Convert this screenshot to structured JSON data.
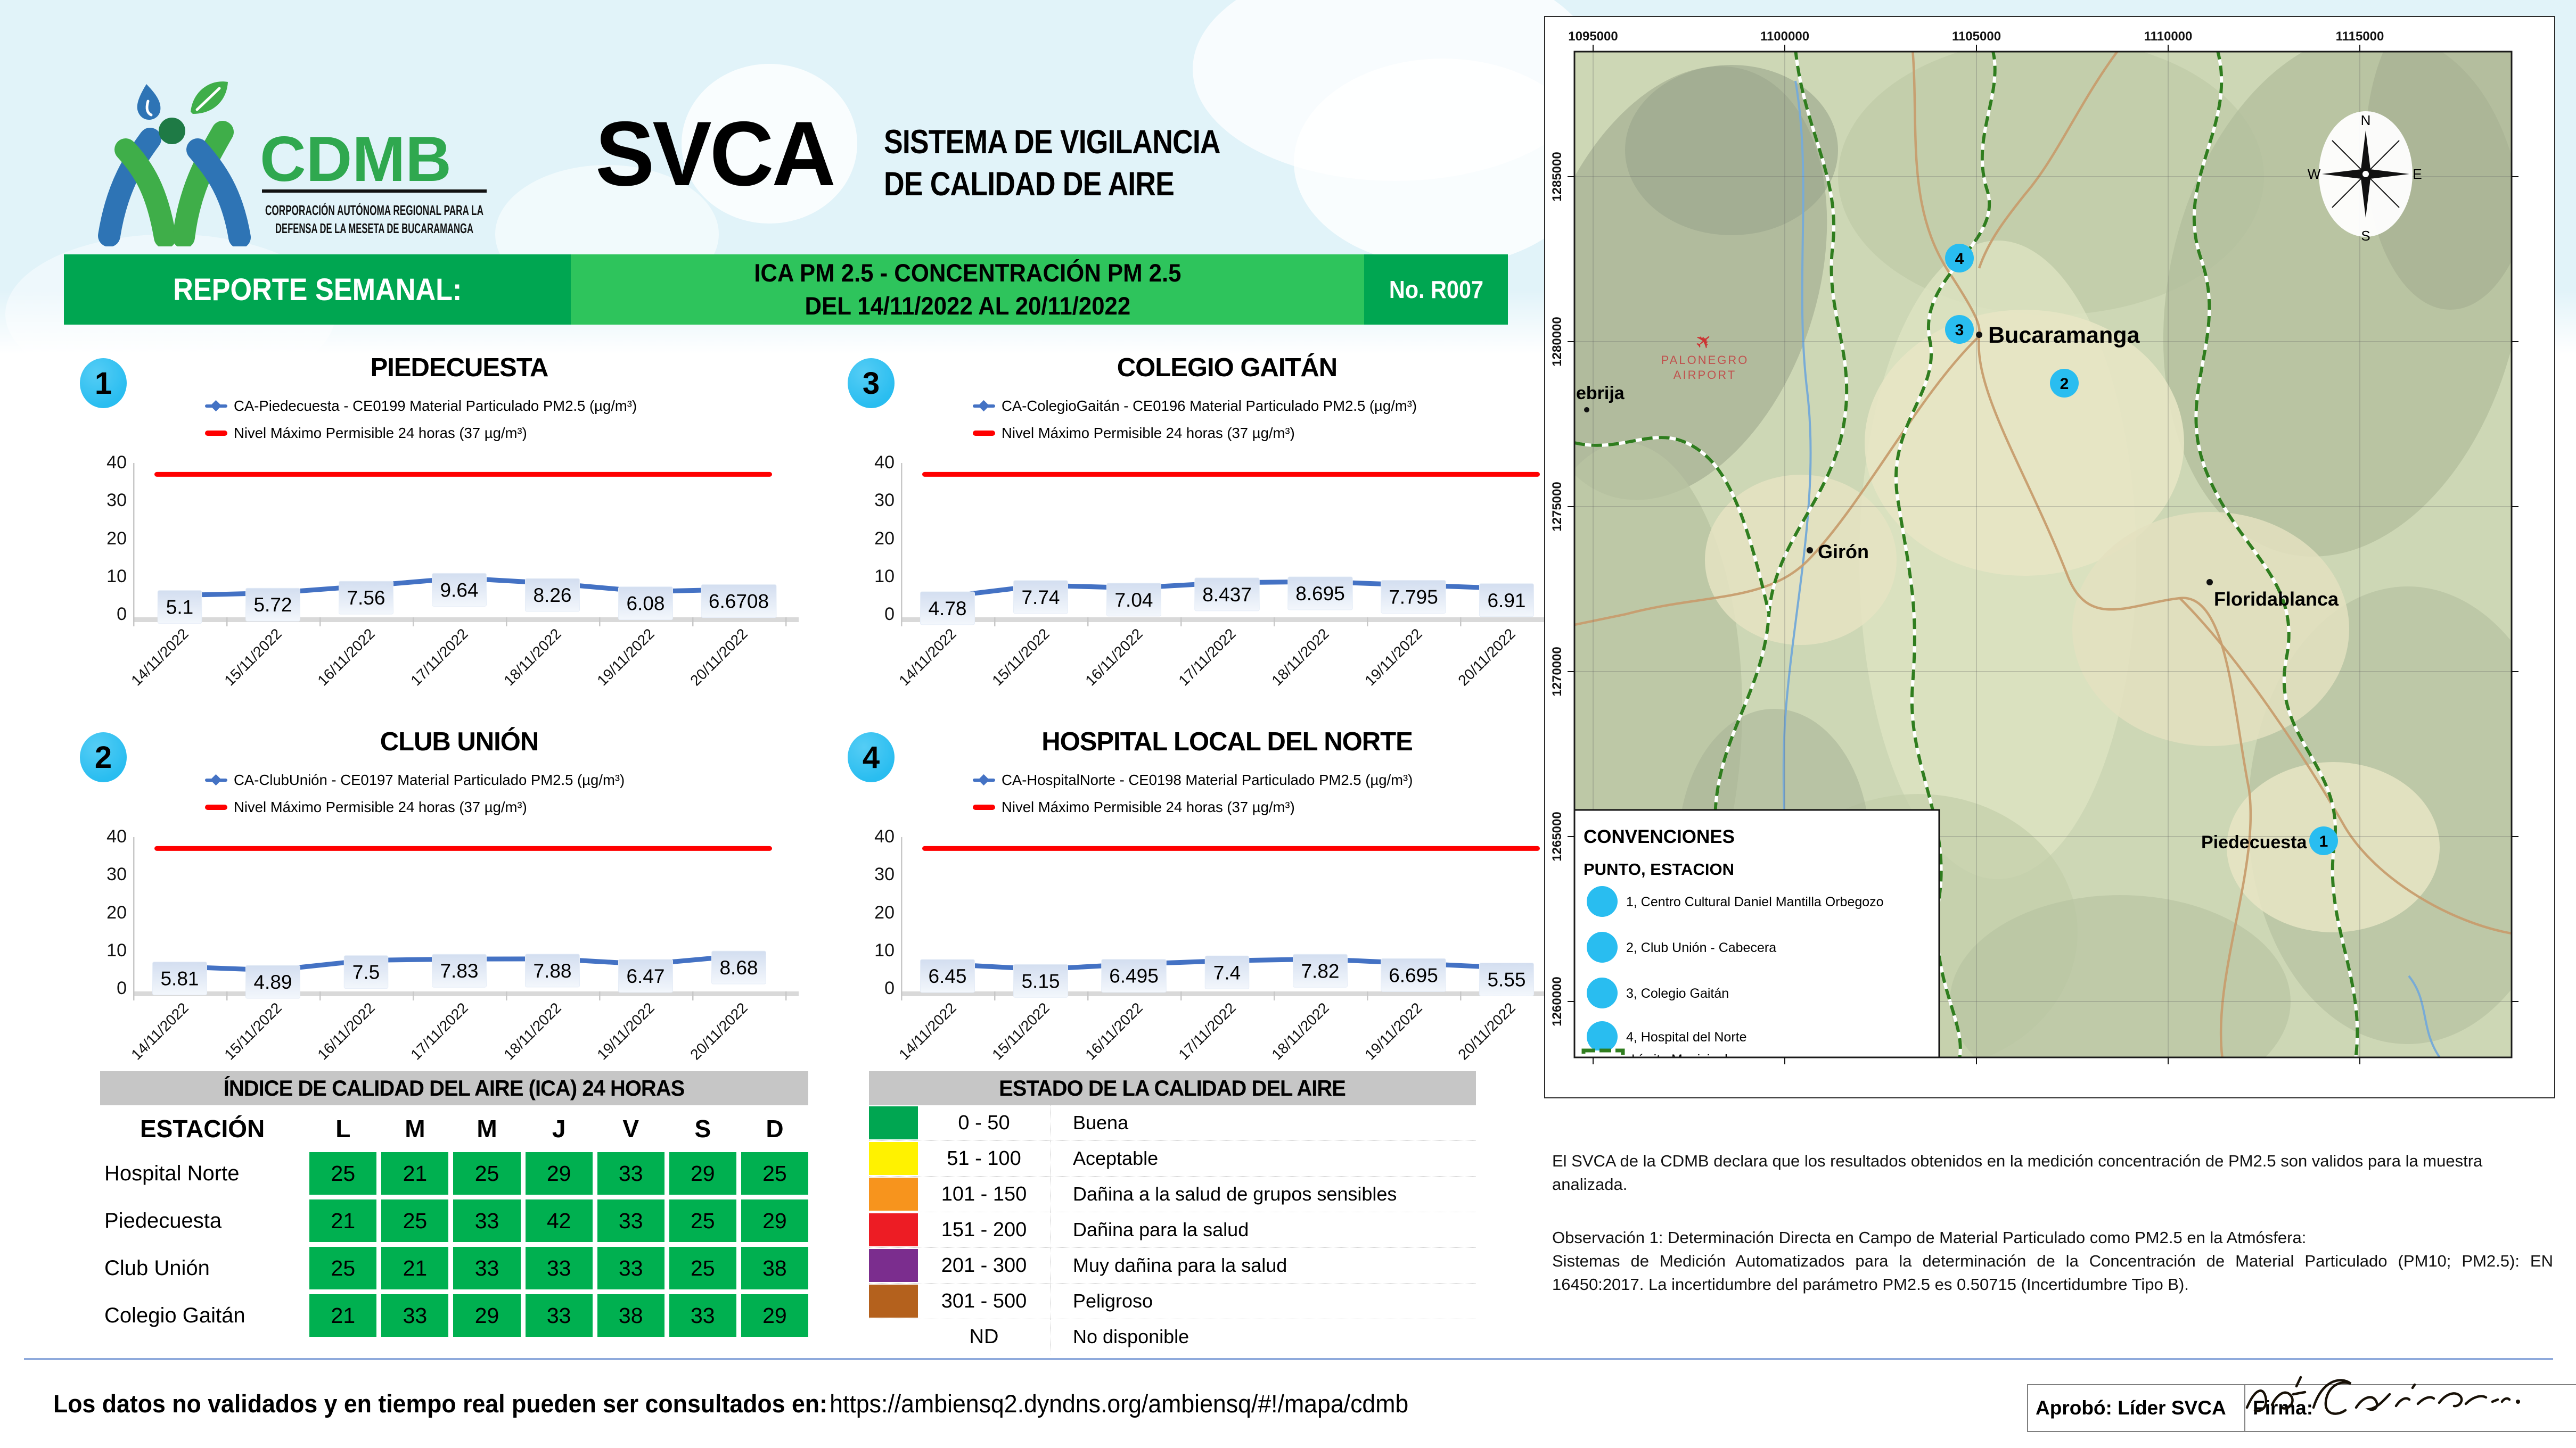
{
  "colors": {
    "green_dark": "#00A651",
    "green_light": "#2EC45C",
    "badge_cyan": "#29BDF0",
    "series_blue": "#4472C4",
    "max_red": "#FF0000",
    "cell_green": "#00B050",
    "header_gray": "#C6C6C6",
    "divider_blue": "#8FAADC",
    "logo_green": "#2FA84F",
    "logo_blue": "#2E74B5"
  },
  "header": {
    "brand": "CDMB",
    "tagline1": "CORPORACIÓN AUTÓNOMA REGIONAL PARA LA",
    "tagline2": "DEFENSA DE LA MESETA DE BUCARAMANGA",
    "title": "SVCA",
    "subtitle1": "SISTEMA DE VIGILANCIA",
    "subtitle2": "DE CALIDAD DE AIRE"
  },
  "banner": {
    "left": "REPORTE SEMANAL:",
    "center1": "ICA PM 2.5 - CONCENTRACIÓN PM 2.5",
    "center2": "DEL 14/11/2022 AL 20/11/2022",
    "right": "No. R007"
  },
  "chart_common": {
    "y_ticks": [
      40,
      30,
      20,
      10,
      0
    ],
    "ylim": [
      0,
      40
    ],
    "max_level": 37,
    "grid": false,
    "legend_position": "top"
  },
  "chart_data": [
    {
      "type": "line",
      "badge": "1",
      "title": "PIEDECUESTA",
      "x": [
        "14/11/2022",
        "15/11/2022",
        "16/11/2022",
        "17/11/2022",
        "18/11/2022",
        "19/11/2022",
        "20/11/2022"
      ],
      "series": [
        {
          "name": "CA-Piedecuesta - CE0199 Material Particulado PM2.5 (µg/m³)",
          "values": [
            5.1,
            5.72,
            7.56,
            9.64,
            8.26,
            6.08,
            6.6708
          ]
        },
        {
          "name": "Nivel Máximo Permisible 24 horas (37 µg/m³)",
          "values": [
            37,
            37,
            37,
            37,
            37,
            37,
            37
          ]
        }
      ],
      "ylim": [
        0,
        40
      ]
    },
    {
      "type": "line",
      "badge": "3",
      "title": "COLEGIO GAITÁN",
      "x": [
        "14/11/2022",
        "15/11/2022",
        "16/11/2022",
        "17/11/2022",
        "18/11/2022",
        "19/11/2022",
        "20/11/2022"
      ],
      "series": [
        {
          "name": "CA-ColegioGaitán - CE0196 Material Particulado PM2.5 (µg/m³)",
          "values": [
            4.78,
            7.74,
            7.04,
            8.437,
            8.695,
            7.795,
            6.91
          ]
        },
        {
          "name": "Nivel Máximo Permisible 24 horas (37 µg/m³)",
          "values": [
            37,
            37,
            37,
            37,
            37,
            37,
            37
          ]
        }
      ],
      "ylim": [
        0,
        40
      ]
    },
    {
      "type": "line",
      "badge": "2",
      "title": "CLUB UNIÓN",
      "x": [
        "14/11/2022",
        "15/11/2022",
        "16/11/2022",
        "17/11/2022",
        "18/11/2022",
        "19/11/2022",
        "20/11/2022"
      ],
      "series": [
        {
          "name": "CA-ClubUnión - CE0197 Material Particulado PM2.5 (µg/m³)",
          "values": [
            5.81,
            4.89,
            7.5,
            7.83,
            7.88,
            6.47,
            8.68
          ]
        },
        {
          "name": "Nivel Máximo Permisible 24 horas (37 µg/m³)",
          "values": [
            37,
            37,
            37,
            37,
            37,
            37,
            37
          ]
        }
      ],
      "ylim": [
        0,
        40
      ]
    },
    {
      "type": "line",
      "badge": "4",
      "title": "HOSPITAL LOCAL DEL NORTE",
      "x": [
        "14/11/2022",
        "15/11/2022",
        "16/11/2022",
        "17/11/2022",
        "18/11/2022",
        "19/11/2022",
        "20/11/2022"
      ],
      "series": [
        {
          "name": "CA-HospitalNorte - CE0198 Material Particulado PM2.5 (µg/m³)",
          "values": [
            6.45,
            5.15,
            6.495,
            7.4,
            7.82,
            6.695,
            5.55
          ]
        },
        {
          "name": "Nivel Máximo Permisible 24 horas (37 µg/m³)",
          "values": [
            37,
            37,
            37,
            37,
            37,
            37,
            37
          ]
        }
      ],
      "ylim": [
        0,
        40
      ]
    }
  ],
  "ica_table": {
    "title": "ÍNDICE DE CALIDAD DEL AIRE (ICA) 24 HORAS",
    "columns": [
      "ESTACIÓN",
      "L",
      "M",
      "M",
      "J",
      "V",
      "S",
      "D"
    ],
    "rows": [
      {
        "station": "Hospital Norte",
        "values": [
          25,
          21,
          25,
          29,
          33,
          29,
          25
        ]
      },
      {
        "station": "Piedecuesta",
        "values": [
          21,
          25,
          33,
          42,
          33,
          25,
          29
        ]
      },
      {
        "station": "Club Unión",
        "values": [
          25,
          21,
          33,
          33,
          33,
          25,
          38
        ]
      },
      {
        "station": "Colegio Gaitán",
        "values": [
          21,
          33,
          29,
          33,
          38,
          33,
          29
        ]
      }
    ]
  },
  "estado_table": {
    "title": "ESTADO DE LA CALIDAD DEL AIRE",
    "rows": [
      {
        "range": "0 - 50",
        "label": "Buena",
        "color": "#00A651"
      },
      {
        "range": "51 - 100",
        "label": "Aceptable",
        "color": "#FFF200"
      },
      {
        "range": "101 - 150",
        "label": "Dañina a la salud de grupos sensibles",
        "color": "#F7941D"
      },
      {
        "range": "151 - 200",
        "label": "Dañina para la salud",
        "color": "#ED1C24"
      },
      {
        "range": "201 - 300",
        "label": "Muy dañina para la salud",
        "color": "#7B2D8E"
      },
      {
        "range": "301 - 500",
        "label": "Peligroso",
        "color": "#B4611D"
      },
      {
        "range": "ND",
        "label": "No disponible",
        "color": null
      }
    ]
  },
  "map": {
    "x_labels": [
      "1095000",
      "1100000",
      "1105000",
      "1110000",
      "1115000"
    ],
    "y_labels": [
      "1285000",
      "1280000",
      "1275000",
      "1270000",
      "1265000",
      "1260000"
    ],
    "cities": {
      "bucaramanga": "Bucaramanga",
      "giron": "Girón",
      "floridablanca": "Floridablanca",
      "piedecuesta": "Piedecuesta",
      "lebrija": "ebrija"
    },
    "airport1": "PALONEGRO",
    "airport2": "AIRPORT",
    "marker_labels": [
      "1",
      "2",
      "3",
      "4"
    ],
    "compass": {
      "n": "N",
      "e": "E",
      "s": "S",
      "w": "W"
    },
    "legend": {
      "title": "CONVENCIONES",
      "subtitle": "PUNTO, ESTACION",
      "items": [
        "1, Centro Cultural Daniel Mantilla Orbegozo",
        "2, Club Unión - Cabecera",
        "3, Colegio Gaitán",
        "4, Hospital del Norte"
      ],
      "limit_label": "Límite Municipal"
    }
  },
  "observations": {
    "p1": "El SVCA  de la CDMB declara que los resultados obtenidos en la medición concentración de PM2.5 son validos para la muestra  analizada.",
    "p2a": "Observación 1: Determinación Directa en Campo de Material Particulado como PM2.5 en la Atmósfera:",
    "p2b": "Sistemas de Medición Automatizados para la  determinación de la Concentración de Material Particulado (PM10; PM2.5): EN 16450:2017. La incertidumbre del parámetro PM2.5 es 0.50715 (Incertidumbre Tipo B)."
  },
  "footer": {
    "text": "Los datos no validados y en tiempo real pueden ser consultados en:",
    "url": "https://ambiensq2.dyndns.org/ambiensq/#!/mapa/cdmb"
  },
  "approval": {
    "approved": "Aprobó: Líder SVCA",
    "firma": "Firma:"
  }
}
